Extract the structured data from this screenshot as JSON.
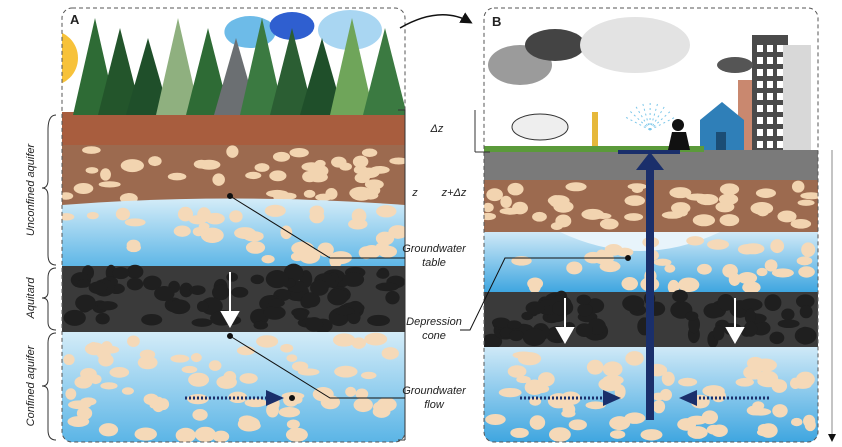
{
  "panels": {
    "a": "A",
    "b": "B"
  },
  "side_labels": {
    "unconfined": "Unconfined aquifer",
    "aquitard": "Aquitard",
    "confined": "Confined aquifer"
  },
  "middle_labels": {
    "delta_z": "Δz",
    "z": "z",
    "z_plus_delta_z": "z+Δz",
    "groundwater_table": [
      "Groundwater",
      "table"
    ],
    "depression_cone": [
      "Depression",
      "cone"
    ],
    "groundwater_flow": [
      "Groundwater",
      "flow"
    ]
  }
}
